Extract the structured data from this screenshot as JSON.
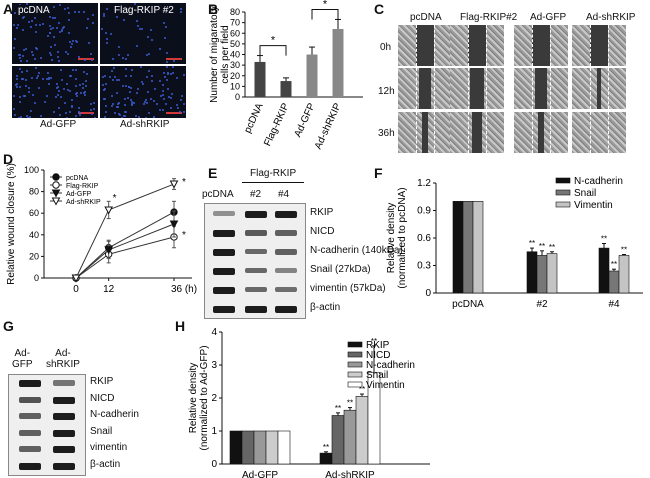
{
  "panel_labels": [
    "A",
    "B",
    "C",
    "D",
    "E",
    "F",
    "G",
    "H"
  ],
  "panel_a": {
    "top_left": "pcDNA",
    "top_right": "Flag-RKIP #2",
    "bottom_left": "Ad-GFP",
    "bottom_right": "Ad-shRKIP"
  },
  "panel_c": {
    "columns": [
      "pcDNA",
      "Flag-RKIP#2",
      "Ad-GFP",
      "Ad-shRKIP"
    ],
    "rows": [
      "0h",
      "12h",
      "36h"
    ]
  },
  "panel_e": {
    "header": "Flag-RKIP",
    "lane_labels": [
      "pcDNA",
      "#2",
      "#4"
    ],
    "rows": [
      "RKIP",
      "NICD",
      "N-cadherin (140kDa)",
      "Snail (27kDa)",
      "vimentin (57kDa)",
      "β-actin"
    ]
  },
  "panel_g": {
    "lane_labels": [
      "Ad-\nGFP",
      "Ad-\nshRKIP"
    ],
    "rows": [
      "RKIP",
      "NICD",
      "N-cadherin",
      "Snail",
      "vimentin",
      "β-actin"
    ]
  },
  "chart_data": [
    {
      "id": "B",
      "type": "bar",
      "categories": [
        "pcDNA",
        "Flag-RKIP",
        "Ad-GFP",
        "Ad-shRKIP"
      ],
      "values": [
        33,
        15,
        40,
        64
      ],
      "errors": [
        6,
        3,
        7,
        9
      ],
      "colors": [
        "#444444",
        "#444444",
        "#888888",
        "#888888"
      ],
      "ylabel": "Number of migaratory cells per field",
      "ylim": [
        0,
        80
      ],
      "yticks": [
        0,
        10,
        20,
        30,
        40,
        50,
        60,
        70,
        80
      ],
      "significance": [
        {
          "from": 0,
          "to": 1,
          "label": "*"
        },
        {
          "from": 2,
          "to": 3,
          "label": "*"
        }
      ]
    },
    {
      "id": "D",
      "type": "line",
      "x": [
        0,
        12,
        36
      ],
      "xticklabels": [
        "0",
        "12",
        "36 (h)"
      ],
      "ylabel": "Relative wound closure (%)",
      "ylim": [
        0,
        100
      ],
      "yticks": [
        0,
        20,
        40,
        60,
        80,
        100
      ],
      "series": [
        {
          "name": "pcDNA",
          "marker": "filled-circle",
          "values": [
            0,
            28,
            61
          ],
          "errors": [
            0,
            7,
            10
          ]
        },
        {
          "name": "Flag-RKIP",
          "marker": "open-circle",
          "values": [
            0,
            22,
            38
          ],
          "errors": [
            0,
            8,
            10
          ]
        },
        {
          "name": "Ad-GFP",
          "marker": "filled-triangle",
          "values": [
            0,
            26,
            50
          ],
          "errors": [
            0,
            8,
            12
          ]
        },
        {
          "name": "Ad-shRKIP",
          "marker": "open-triangle",
          "values": [
            0,
            63,
            87
          ],
          "errors": [
            0,
            8,
            5
          ]
        }
      ],
      "annotations": [
        {
          "x": 12,
          "y": 74,
          "label": "*"
        },
        {
          "x": 36,
          "y": 89,
          "label": "*"
        },
        {
          "x": 36,
          "y": 40,
          "label": "*"
        }
      ]
    },
    {
      "id": "F",
      "type": "bar",
      "categories": [
        "pcDNA",
        "#2",
        "#4"
      ],
      "ylabel": "Relative density (normalized to pcDNA)",
      "ylim": [
        0,
        1.2
      ],
      "yticks": [
        "0",
        "0.3",
        "0.6",
        "0.9",
        "1.2"
      ],
      "series": [
        {
          "name": "N-cadherin",
          "color": "#111111",
          "values": [
            1.0,
            0.45,
            0.49
          ],
          "errors": [
            0,
            0.04,
            0.05
          ]
        },
        {
          "name": "Snail",
          "color": "#777777",
          "values": [
            1.0,
            0.41,
            0.24
          ],
          "errors": [
            0,
            0.05,
            0.02
          ]
        },
        {
          "name": "Vimentin",
          "color": "#c4c4c4",
          "values": [
            1.0,
            0.43,
            0.41
          ],
          "errors": [
            0,
            0.02,
            0.01
          ]
        }
      ],
      "sig_label": "**"
    },
    {
      "id": "H",
      "type": "bar",
      "categories": [
        "Ad-GFP",
        "Ad-shRKIP"
      ],
      "ylabel": "Relative density (normalized to Ad-GFP)",
      "ylim": [
        0,
        4
      ],
      "yticks": [
        "0",
        "1",
        "2",
        "3",
        "4"
      ],
      "series": [
        {
          "name": "RKIP",
          "color": "#111111",
          "values": [
            1.0,
            0.33
          ],
          "errors": [
            0,
            0.04
          ]
        },
        {
          "name": "NICD",
          "color": "#666666",
          "values": [
            1.0,
            1.47
          ],
          "errors": [
            0,
            0.08
          ]
        },
        {
          "name": "N-cadherin",
          "color": "#999999",
          "values": [
            1.0,
            1.63
          ],
          "errors": [
            0,
            0.08
          ]
        },
        {
          "name": "Snail",
          "color": "#cccccc",
          "values": [
            1.0,
            2.05
          ],
          "errors": [
            0,
            0.07
          ]
        },
        {
          "name": "Vimentin",
          "color": "#ffffff",
          "values": [
            1.0,
            2.78
          ],
          "errors": [
            0,
            0.8
          ]
        }
      ],
      "sig_label": "**"
    }
  ]
}
